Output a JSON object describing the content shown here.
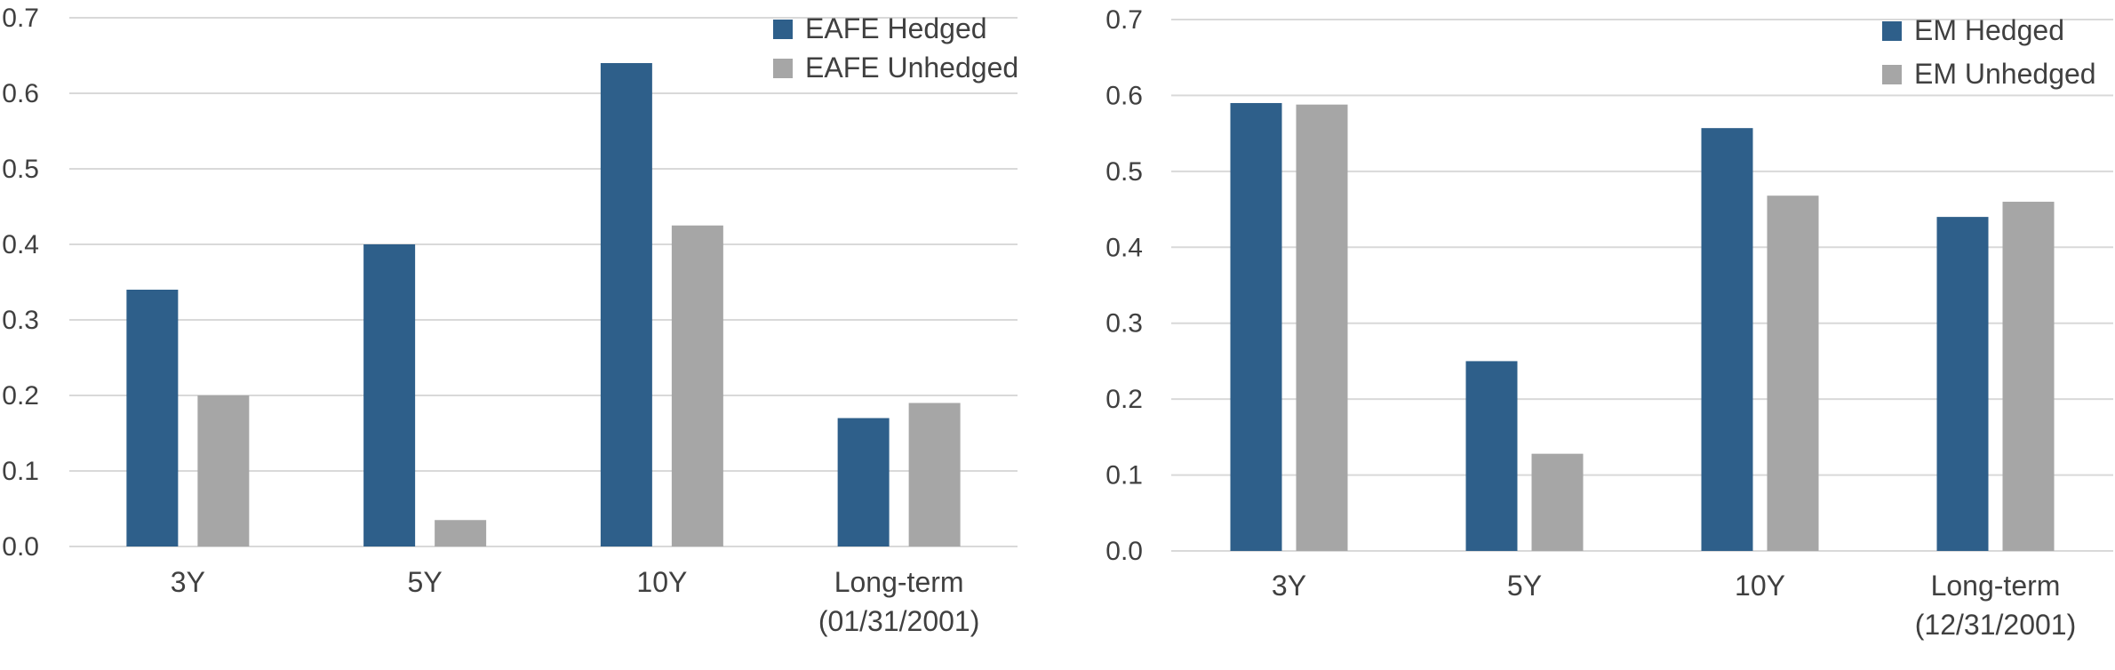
{
  "chart_data": [
    {
      "type": "bar",
      "categories": [
        "3Y",
        "5Y",
        "10Y",
        "Long-term\n(01/31/2001)"
      ],
      "series": [
        {
          "name": "EAFE Hedged",
          "color": "#2e5f8a",
          "values": [
            0.34,
            0.4,
            0.64,
            0.17
          ]
        },
        {
          "name": "EAFE Unhedged",
          "color": "#a6a6a6",
          "values": [
            0.2,
            0.035,
            0.425,
            0.19
          ]
        }
      ],
      "yticks": [
        "0.0",
        "0.1",
        "0.2",
        "0.3",
        "0.4",
        "0.5",
        "0.6",
        "0.7"
      ],
      "ylim": [
        0,
        0.7
      ],
      "grid": true,
      "legend": "top-right",
      "title": "",
      "xlabel": "",
      "ylabel": ""
    },
    {
      "type": "bar",
      "categories": [
        "3Y",
        "5Y",
        "10Y",
        "Long-term\n(12/31/2001)"
      ],
      "series": [
        {
          "name": "EM Hedged",
          "color": "#2e5f8a",
          "values": [
            0.59,
            0.25,
            0.557,
            0.44
          ]
        },
        {
          "name": "EM Unhedged",
          "color": "#a6a6a6",
          "values": [
            0.588,
            0.128,
            0.468,
            0.46
          ]
        }
      ],
      "yticks": [
        "0.0",
        "0.1",
        "0.2",
        "0.3",
        "0.4",
        "0.5",
        "0.6",
        "0.7"
      ],
      "ylim": [
        0,
        0.7
      ],
      "grid": true,
      "legend": "top-right",
      "title": "",
      "xlabel": "",
      "ylabel": ""
    }
  ]
}
